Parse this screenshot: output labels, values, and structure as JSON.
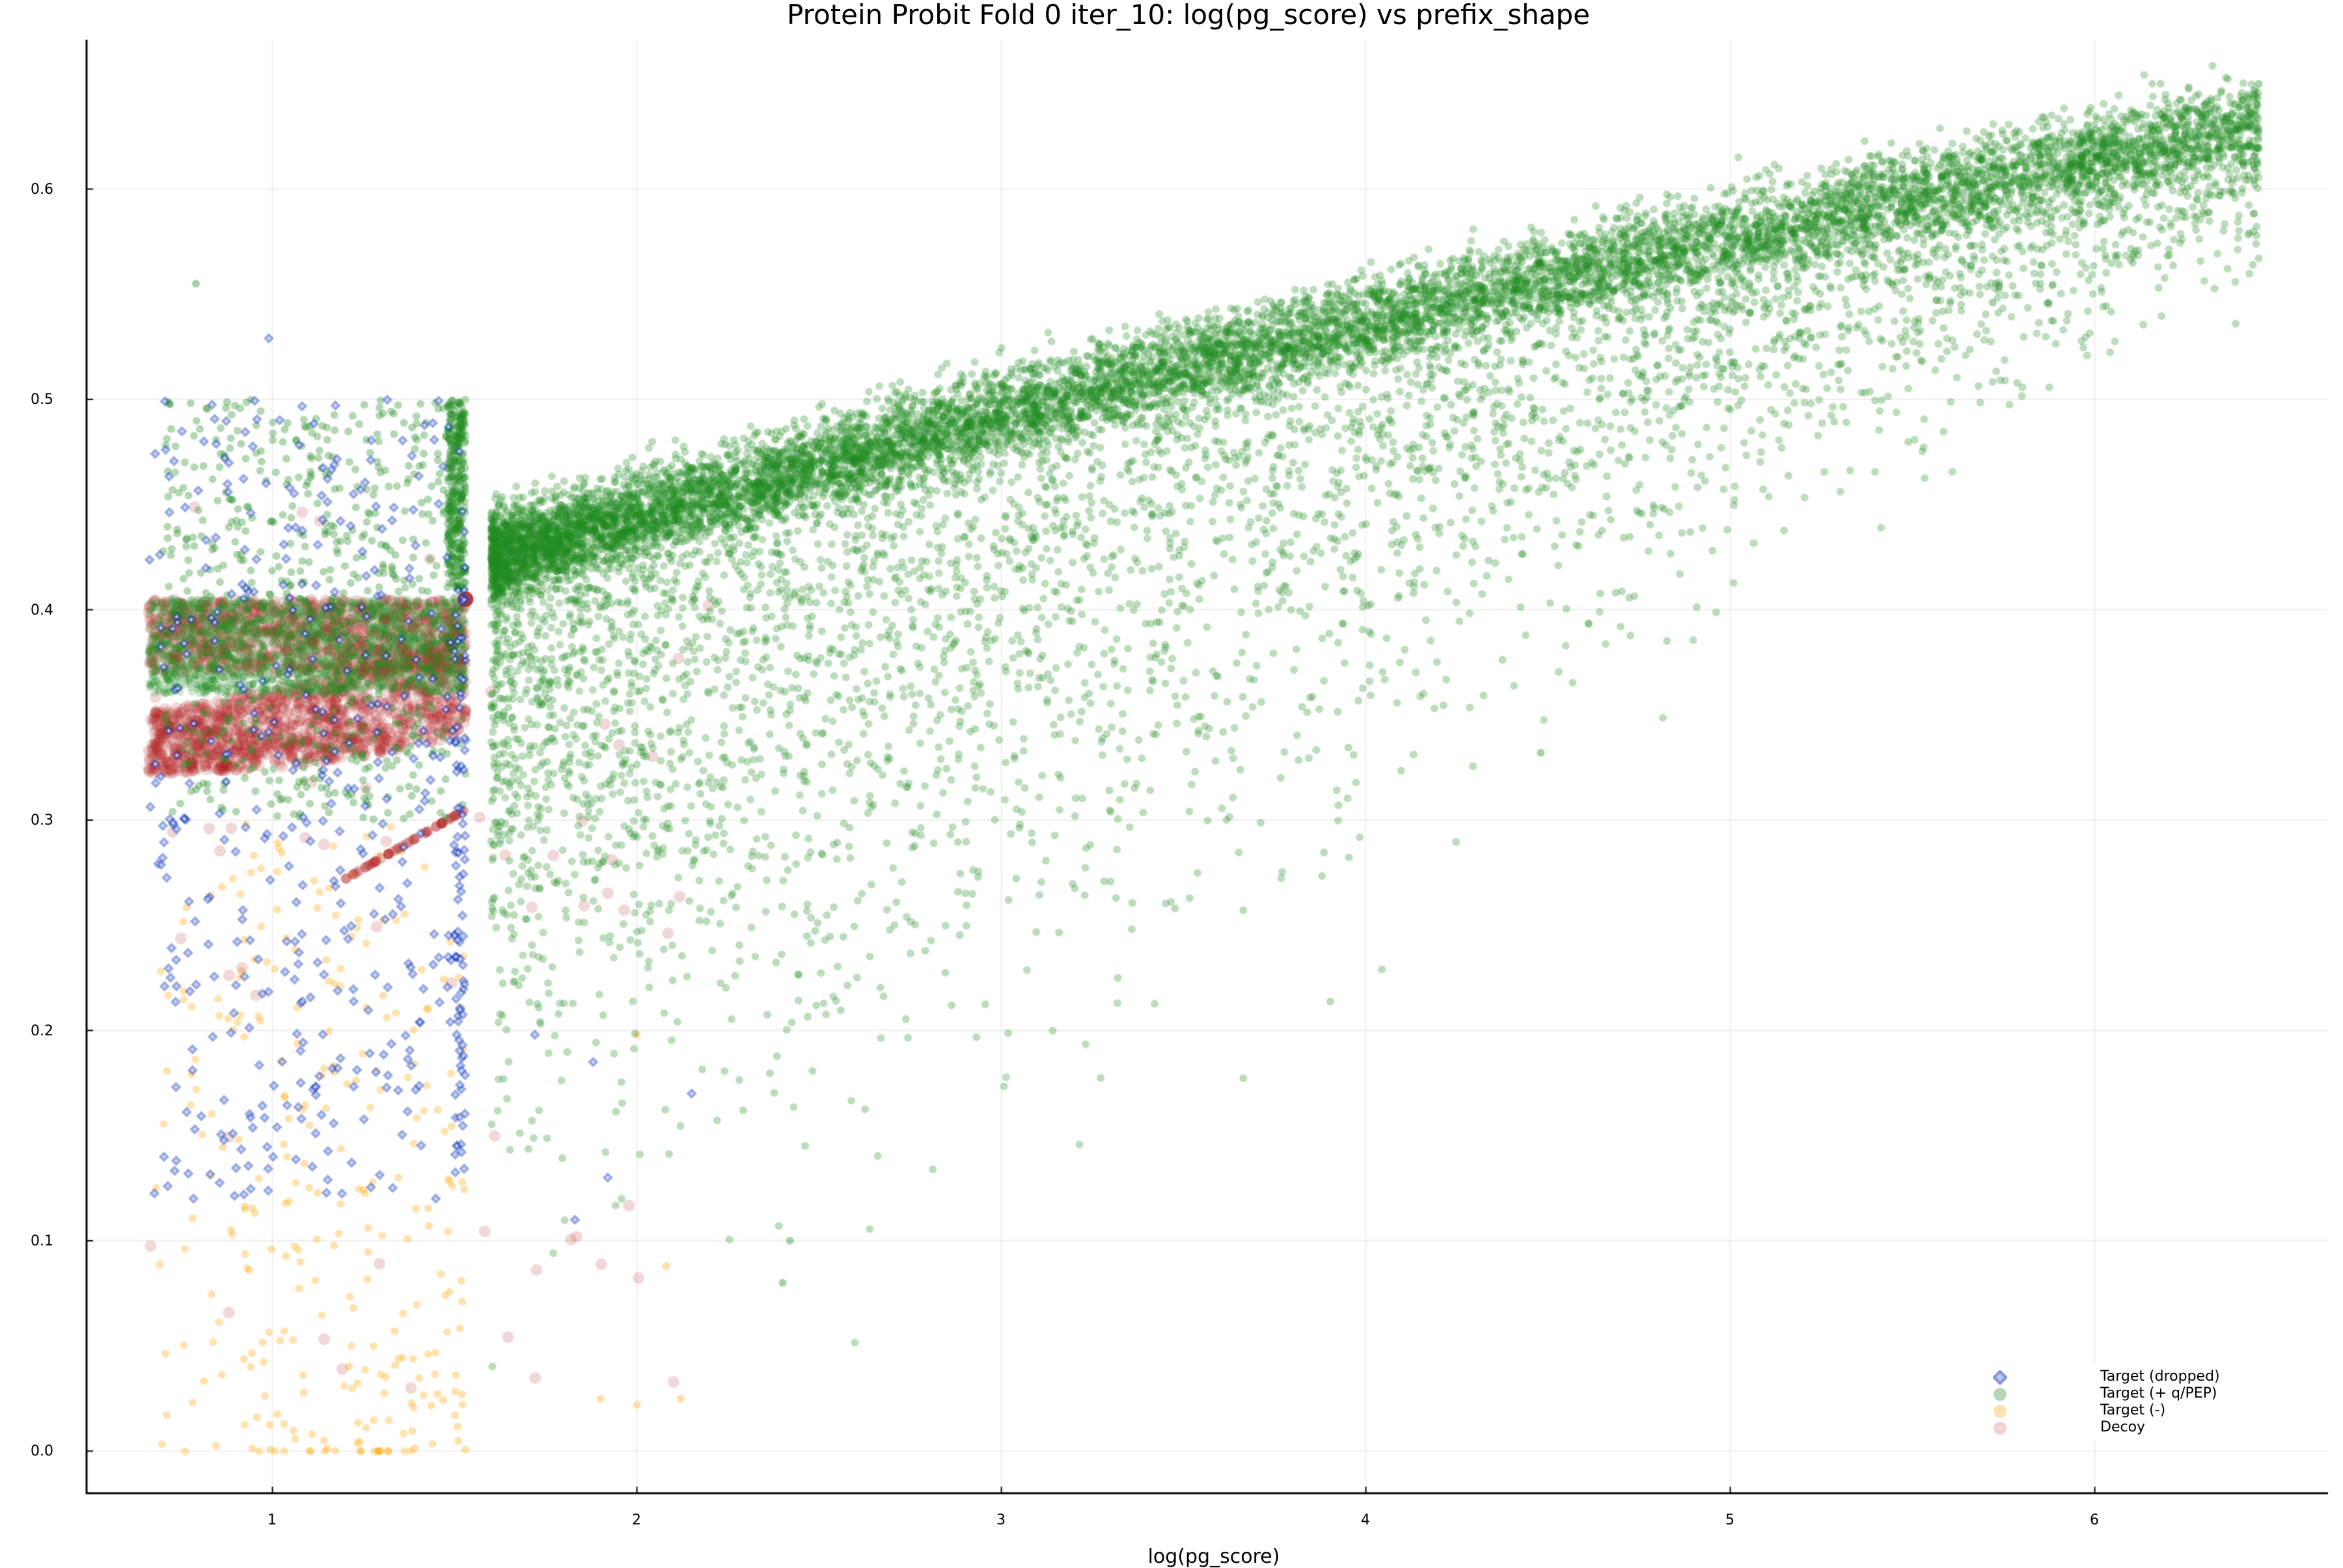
{
  "chart": {
    "title": "Protein Probit Fold 0 iter_10: log(pg_score) vs prefix_shape",
    "xlabel": "log(pg_score)",
    "ylabel": "",
    "xticks": [
      "1",
      "2",
      "3",
      "4",
      "5",
      "6"
    ],
    "yticks": [
      "0.0",
      "0.1",
      "0.2",
      "0.3",
      "0.4",
      "0.5",
      "0.6"
    ],
    "legend": [
      {
        "label": "Target (dropped)",
        "marker": "diamond",
        "color": "#1f3fbf"
      },
      {
        "label": "Target (+ q/PEP)",
        "marker": "circle",
        "color": "#228b22"
      },
      {
        "label": "Target (-)",
        "marker": "circle",
        "color": "#ffa500"
      },
      {
        "label": "Decoy",
        "marker": "circle",
        "color": "#b22222"
      }
    ]
  },
  "chart_data": {
    "type": "scatter",
    "title": "Protein Probit Fold 0 iter_10: log(pg_score) vs prefix_shape",
    "xlabel": "log(pg_score)",
    "ylabel": "",
    "xlim": [
      0.49,
      6.64
    ],
    "ylim": [
      -0.02,
      0.671
    ],
    "grid": true,
    "legend_position": "bottom-right",
    "series": [
      {
        "name": "Target (dropped)",
        "marker": "diamond",
        "color": "#1f3fbf",
        "x_range": [
          0.65,
          2.0
        ],
        "y_range": [
          0.11,
          0.53
        ],
        "sample_points": [
          [
            0.66,
            0.403
          ],
          [
            0.72,
            0.19
          ],
          [
            0.75,
            0.124
          ],
          [
            0.99,
            0.529
          ],
          [
            1.1,
            0.49
          ],
          [
            1.5,
            0.19
          ],
          [
            1.52,
            0.25
          ],
          [
            1.83,
            0.11
          ],
          [
            1.92,
            0.13
          ],
          [
            2.15,
            0.17
          ]
        ]
      },
      {
        "name": "Target (+ q/PEP)",
        "marker": "circle",
        "color": "#228b22",
        "x_range": [
          0.7,
          6.47
        ],
        "y_range": [
          0.02,
          0.65
        ],
        "trend": "dense band rising from ~0.44 at x=1.9 to ~0.64 at x=6.4; vertical striations at x≈1.52, 2.22, 2.62, 2.92, 3.15",
        "sample_points": [
          [
            0.79,
            0.555
          ],
          [
            1.52,
            0.45
          ],
          [
            2.2,
            0.45
          ],
          [
            2.6,
            0.48
          ],
          [
            2.9,
            0.5
          ],
          [
            3.5,
            0.53
          ],
          [
            4.0,
            0.56
          ],
          [
            4.5,
            0.58
          ],
          [
            5.0,
            0.6
          ],
          [
            5.5,
            0.62
          ],
          [
            6.0,
            0.635
          ],
          [
            6.45,
            0.65
          ],
          [
            4.48,
            0.33
          ],
          [
            2.4,
            0.08
          ],
          [
            1.48,
            0.06
          ]
        ]
      },
      {
        "name": "Target (-)",
        "marker": "circle",
        "color": "#ffa500",
        "x_range": [
          0.65,
          2.1
        ],
        "y_range": [
          0.0,
          0.3
        ],
        "sample_points": [
          [
            0.72,
            0.046
          ],
          [
            0.75,
            0.0
          ],
          [
            0.9,
            0.0
          ],
          [
            1.05,
            0.0
          ],
          [
            1.2,
            0.0
          ],
          [
            1.5,
            0.027
          ],
          [
            1.9,
            0.025
          ],
          [
            2.0,
            0.022
          ],
          [
            2.12,
            0.025
          ],
          [
            1.0,
            0.1
          ]
        ]
      },
      {
        "name": "Decoy",
        "marker": "circle",
        "color": "#b22222",
        "x_range": [
          0.65,
          2.2
        ],
        "y_range": [
          0.03,
          0.45
        ],
        "trend": "two dense bands: y≈0.37–0.405 and y≈0.32–0.37 for x in [0.65,1.53]; diagonal streak from (1.2,0.27) to (1.52,0.305)",
        "sample_points": [
          [
            0.7,
            0.44
          ],
          [
            0.65,
            0.222
          ],
          [
            0.78,
            0.26
          ],
          [
            1.53,
            0.405
          ],
          [
            1.53,
            0.37
          ],
          [
            1.1,
            0.32
          ],
          [
            1.83,
            0.35
          ],
          [
            0.92,
            0.038
          ],
          [
            1.5,
            0.078
          ],
          [
            1.2,
            0.047
          ],
          [
            1.32,
            0.046
          ],
          [
            1.48,
            0.037
          ]
        ]
      }
    ]
  }
}
